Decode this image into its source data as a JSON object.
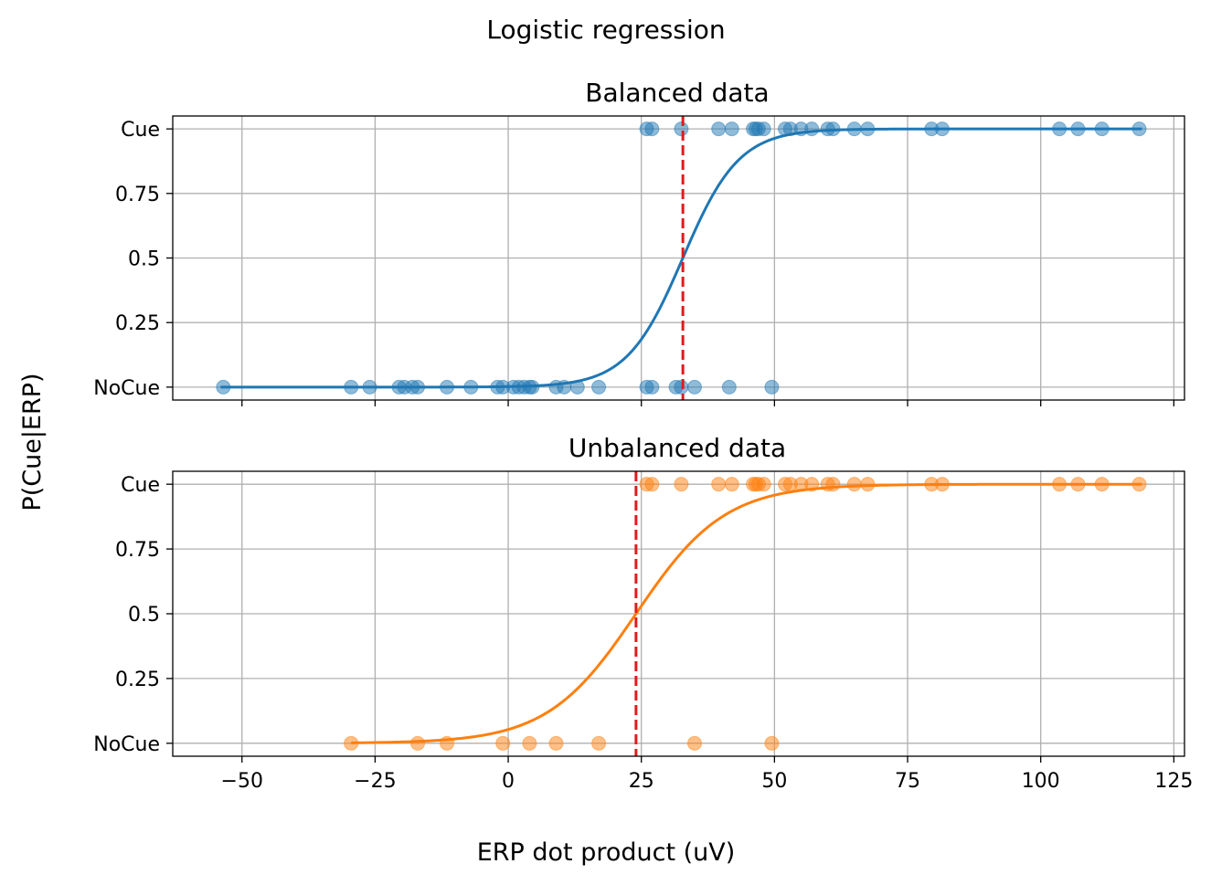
{
  "figure": {
    "suptitle": "Logistic regression",
    "ylabel": "P(Cue|ERP)",
    "xlabel": "ERP dot product (uV)"
  },
  "colors": {
    "balanced": "#1f77b4",
    "unbalanced": "#ff7f0e",
    "threshold": "#e31a1c"
  },
  "chart_data": [
    {
      "type": "scatter",
      "title": "Balanced data",
      "xlim": [
        -63,
        127
      ],
      "ylim": [
        -0.05,
        1.05
      ],
      "xticks": [
        -50,
        -25,
        0,
        25,
        50,
        75,
        100,
        125
      ],
      "yticks": [
        {
          "value": 0,
          "label": "NoCue"
        },
        {
          "value": 0.25,
          "label": "0.25"
        },
        {
          "value": 0.5,
          "label": "0.5"
        },
        {
          "value": 0.75,
          "label": "0.75"
        },
        {
          "value": 1,
          "label": "Cue"
        }
      ],
      "show_xticklabels": false,
      "grid": true,
      "threshold": 32.8,
      "logistic": {
        "midpoint": 32.8,
        "slope": 0.19
      },
      "curve_range": [
        -54,
        119
      ],
      "points_cue": [
        26,
        27,
        32.5,
        39.5,
        42,
        46,
        46.5,
        47,
        48,
        52,
        53,
        55,
        57,
        60,
        61,
        65,
        67.5,
        79.5,
        81.5,
        103.5,
        107,
        111.5,
        118.5
      ],
      "points_nocue": [
        -53.5,
        -29.5,
        -26,
        -20.5,
        -19.5,
        -18,
        -17,
        -11.5,
        -7,
        -2,
        -1,
        1,
        2,
        3,
        4,
        4.5,
        9,
        10.5,
        13,
        17,
        26,
        27,
        31.5,
        32.5,
        35,
        41.5,
        49.5
      ]
    },
    {
      "type": "scatter",
      "title": "Unbalanced data",
      "xlim": [
        -63,
        127
      ],
      "ylim": [
        -0.05,
        1.05
      ],
      "xticks": [
        -50,
        -25,
        0,
        25,
        50,
        75,
        100,
        125
      ],
      "xticklabels": [
        "−50",
        "−25",
        "0",
        "25",
        "50",
        "75",
        "100",
        "125"
      ],
      "yticks": [
        {
          "value": 0,
          "label": "NoCue"
        },
        {
          "value": 0.25,
          "label": "0.25"
        },
        {
          "value": 0.5,
          "label": "0.5"
        },
        {
          "value": 0.75,
          "label": "0.75"
        },
        {
          "value": 1,
          "label": "Cue"
        }
      ],
      "show_xticklabels": true,
      "grid": true,
      "threshold": 24,
      "logistic": {
        "midpoint": 24,
        "slope": 0.12
      },
      "curve_range": [
        -29.5,
        119
      ],
      "points_cue": [
        26,
        27,
        32.5,
        39.5,
        42,
        46,
        46.5,
        47,
        48,
        52,
        53,
        55,
        57,
        60,
        61,
        65,
        67.5,
        79.5,
        81.5,
        103.5,
        107,
        111.5,
        118.5
      ],
      "points_nocue": [
        -29.5,
        -17,
        -11.5,
        -1,
        4,
        9,
        17,
        35,
        49.5
      ]
    }
  ]
}
